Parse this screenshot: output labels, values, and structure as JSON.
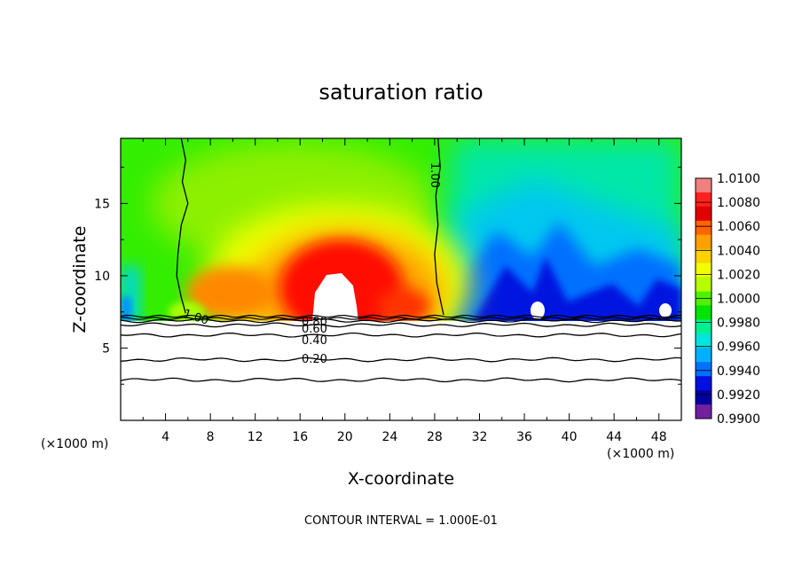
{
  "chart_data": {
    "type": "heatmap",
    "title": "saturation ratio",
    "xlabel": "X-coordinate",
    "ylabel": "Z-coordinate",
    "x_unit": "(×1000 m)",
    "z_unit": "(×1000 m)",
    "xlim": [
      0,
      50
    ],
    "ylim": [
      0,
      19.5
    ],
    "x_ticks": [
      4,
      8,
      12,
      16,
      20,
      24,
      28,
      32,
      36,
      40,
      44,
      48
    ],
    "y_ticks": [
      5,
      10,
      15
    ],
    "ground_z": 7.2,
    "colorbar": {
      "levels": [
        "1.0100",
        "1.0080",
        "1.0060",
        "1.0040",
        "1.0020",
        "1.0000",
        "0.9980",
        "0.9960",
        "0.9940",
        "0.9920",
        "0.9900"
      ],
      "colors": [
        "#f08080",
        "#ff2020",
        "#e00000",
        "#ff6400",
        "#ffa000",
        "#ffd200",
        "#f0ff00",
        "#b4ff00",
        "#50f000",
        "#00e400",
        "#00f090",
        "#00e4e0",
        "#00b0ff",
        "#0070ff",
        "#0010e0",
        "#0000a0",
        "#7020a0"
      ]
    },
    "contour_lines": [
      {
        "level": 1.0,
        "label": "1.00",
        "points": [
          [
            5.4,
            19.5
          ],
          [
            5.8,
            18
          ],
          [
            5.5,
            16.5
          ],
          [
            6.0,
            15
          ],
          [
            5.4,
            13.5
          ],
          [
            5.1,
            11.5
          ],
          [
            5.0,
            10
          ],
          [
            5.4,
            8.5
          ],
          [
            5.8,
            7.4
          ]
        ]
      },
      {
        "level": 1.0,
        "label": "1.00",
        "points": [
          [
            28.3,
            19.5
          ],
          [
            28.5,
            17.5
          ],
          [
            28.1,
            15.5
          ],
          [
            28.3,
            13.5
          ],
          [
            28.0,
            11.5
          ],
          [
            28.2,
            9.5
          ],
          [
            28.6,
            8
          ],
          [
            28.8,
            7.3
          ]
        ]
      },
      {
        "level": 0.8,
        "label": "0.80",
        "points": [
          [
            0,
            6.9
          ],
          [
            50,
            6.9
          ]
        ]
      },
      {
        "level": 0.6,
        "label": "0.60",
        "points": [
          [
            0,
            6.6
          ],
          [
            50,
            6.6
          ]
        ]
      },
      {
        "level": 0.4,
        "label": "0.40",
        "points": [
          [
            0,
            5.9
          ],
          [
            50,
            5.9
          ]
        ]
      },
      {
        "level": 0.2,
        "label": "0.20",
        "points": [
          [
            0,
            4.2
          ],
          [
            50,
            4.2
          ]
        ]
      },
      {
        "level": 0.1,
        "label": "",
        "points": [
          [
            0,
            2.8
          ],
          [
            50,
            2.8
          ]
        ]
      }
    ],
    "contour_label_texts": [
      "1.00",
      "1.00",
      "0.80",
      "0.60",
      "0.40",
      "0.20"
    ]
  },
  "footer": {
    "contour_interval": "CONTOUR INTERVAL = 1.000E-01"
  }
}
